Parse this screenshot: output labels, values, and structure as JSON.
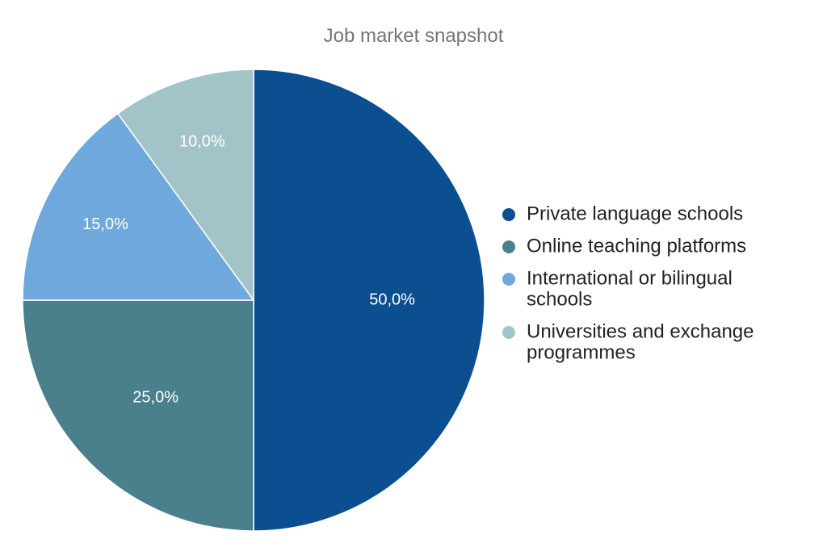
{
  "chart_data": {
    "type": "pie",
    "title": "Job market snapshot",
    "categories": [
      "Private language schools",
      "Online teaching platforms",
      "International or bilingual schools",
      "Universities and exchange programmes"
    ],
    "values": [
      50.0,
      25.0,
      15.0,
      10.0
    ],
    "value_labels": [
      "50,0%",
      "25,0%",
      "15,0%",
      "10,0%"
    ],
    "legend_lines": [
      [
        "Private language schools"
      ],
      [
        "Online teaching platforms"
      ],
      [
        "International or bilingual",
        "schools"
      ],
      [
        "Universities and exchange",
        "programmes"
      ]
    ],
    "colors": [
      "#0b4f91",
      "#4a7f8c",
      "#6fa8dc",
      "#a2c4c9"
    ],
    "legend_position": "right",
    "start": "top, clockwise"
  }
}
